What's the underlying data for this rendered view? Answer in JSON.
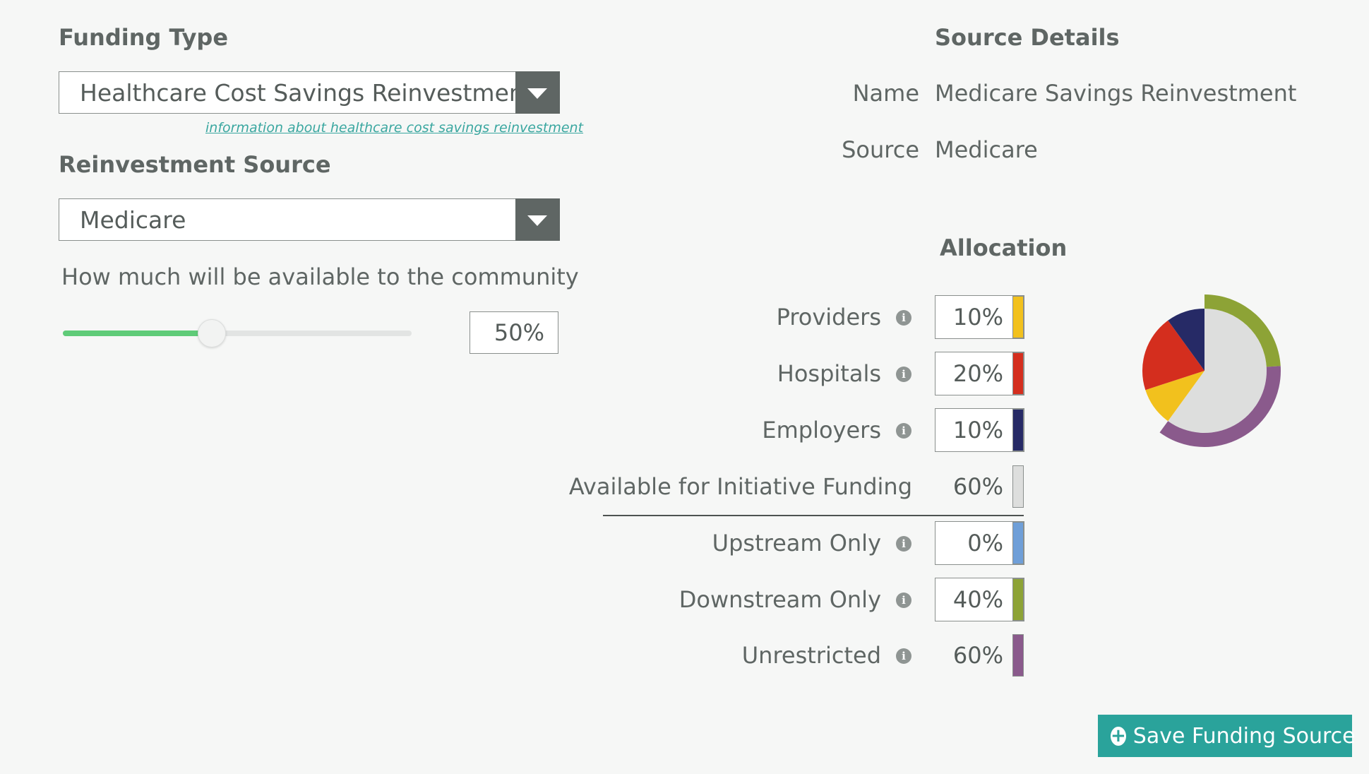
{
  "funding_type": {
    "heading": "Funding Type",
    "selected": "Healthcare Cost Savings Reinvestment",
    "info_link": "information about healthcare cost savings reinvestment"
  },
  "reinvestment_source": {
    "heading": "Reinvestment Source",
    "selected": "Medicare"
  },
  "community": {
    "question": "How much will be available to the community",
    "slider_fraction": 0.5,
    "value_label": "50%"
  },
  "source_details": {
    "heading": "Source Details",
    "name_label": "Name",
    "name_value": "Medicare Savings Reinvestment",
    "source_label": "Source",
    "source_value": "Medicare"
  },
  "allocation": {
    "heading": "Allocation",
    "rows": [
      {
        "label": "Providers",
        "value": "10%",
        "editable": true,
        "info": true,
        "color": "#f2c11d"
      },
      {
        "label": "Hospitals",
        "value": "20%",
        "editable": true,
        "info": true,
        "color": "#d42e1e"
      },
      {
        "label": "Employers",
        "value": "10%",
        "editable": true,
        "info": true,
        "color": "#262a66"
      },
      {
        "label": "Available for Initiative Funding",
        "value": "60%",
        "editable": false,
        "info": false,
        "color": "#dddedd"
      },
      {
        "label": "Upstream Only",
        "value": "0%",
        "editable": true,
        "info": true,
        "color": "#6f9fd8"
      },
      {
        "label": "Downstream Only",
        "value": "40%",
        "editable": true,
        "info": true,
        "color": "#8da336"
      },
      {
        "label": "Unrestricted",
        "value": "60%",
        "editable": false,
        "info": true,
        "color": "#8a5a8c"
      }
    ],
    "pie": {
      "inner": [
        {
          "name": "Available for Initiative Funding",
          "percent": 60,
          "color": "#dddedd"
        },
        {
          "name": "Providers",
          "percent": 10,
          "color": "#f2c11d"
        },
        {
          "name": "Hospitals",
          "percent": 20,
          "color": "#d42e1e"
        },
        {
          "name": "Employers",
          "percent": 10,
          "color": "#262a66"
        }
      ],
      "outer": [
        {
          "name": "Downstream Only",
          "percent": 40,
          "of_available_percent": 60,
          "color": "#8da336"
        },
        {
          "name": "Unrestricted",
          "percent": 60,
          "of_available_percent": 60,
          "color": "#8a5a8c"
        }
      ]
    }
  },
  "save_button": {
    "label": "Save Funding Source",
    "icon": "plus-circle-icon"
  }
}
